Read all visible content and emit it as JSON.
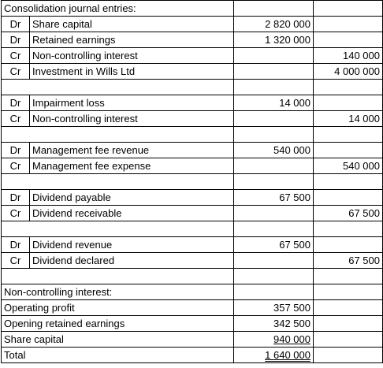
{
  "title": "Consolidation journal entries:",
  "entries": [
    {
      "type": "line",
      "dc": "Dr",
      "account": "Share capital",
      "debit": "2 820 000",
      "credit": ""
    },
    {
      "type": "line",
      "dc": "Dr",
      "account": "Retained earnings",
      "debit": "1 320 000",
      "credit": ""
    },
    {
      "type": "line",
      "dc": "Cr",
      "account": "Non-controlling interest",
      "debit": "",
      "credit": "140 000"
    },
    {
      "type": "line",
      "dc": "Cr",
      "account": "Investment in Wills Ltd",
      "debit": "",
      "credit": "4 000 000"
    },
    {
      "type": "blank"
    },
    {
      "type": "line",
      "dc": "Dr",
      "account": "Impairment loss",
      "debit": "14 000",
      "credit": ""
    },
    {
      "type": "line",
      "dc": "Cr",
      "account": "Non-controlling interest",
      "debit": "",
      "credit": "14 000"
    },
    {
      "type": "blank"
    },
    {
      "type": "line",
      "dc": "Dr",
      "account": "Management fee revenue",
      "debit": "540 000",
      "credit": ""
    },
    {
      "type": "line",
      "dc": "Cr",
      "account": "Management fee expense",
      "debit": "",
      "credit": "540 000"
    },
    {
      "type": "blank"
    },
    {
      "type": "line",
      "dc": "Dr",
      "account": "Dividend payable",
      "debit": "67 500",
      "credit": ""
    },
    {
      "type": "line",
      "dc": "Cr",
      "account": "Dividend receivable",
      "debit": "",
      "credit": "67 500"
    },
    {
      "type": "blank"
    },
    {
      "type": "line",
      "dc": "Dr",
      "account": "Dividend revenue",
      "debit": "67 500",
      "credit": ""
    },
    {
      "type": "line",
      "dc": "Cr",
      "account": "Dividend declared",
      "debit": "",
      "credit": "67 500"
    },
    {
      "type": "blank"
    }
  ],
  "nci": {
    "title": "Non-controlling interest:",
    "rows": [
      {
        "label": "Operating profit",
        "amount": "357 500",
        "style": ""
      },
      {
        "label": "Opening retained earnings",
        "amount": "342 500",
        "style": ""
      },
      {
        "label": "Share capital",
        "amount": "940 000",
        "style": "underline"
      },
      {
        "label": "Total",
        "amount": "1 640 000",
        "style": "double-underline"
      }
    ]
  }
}
